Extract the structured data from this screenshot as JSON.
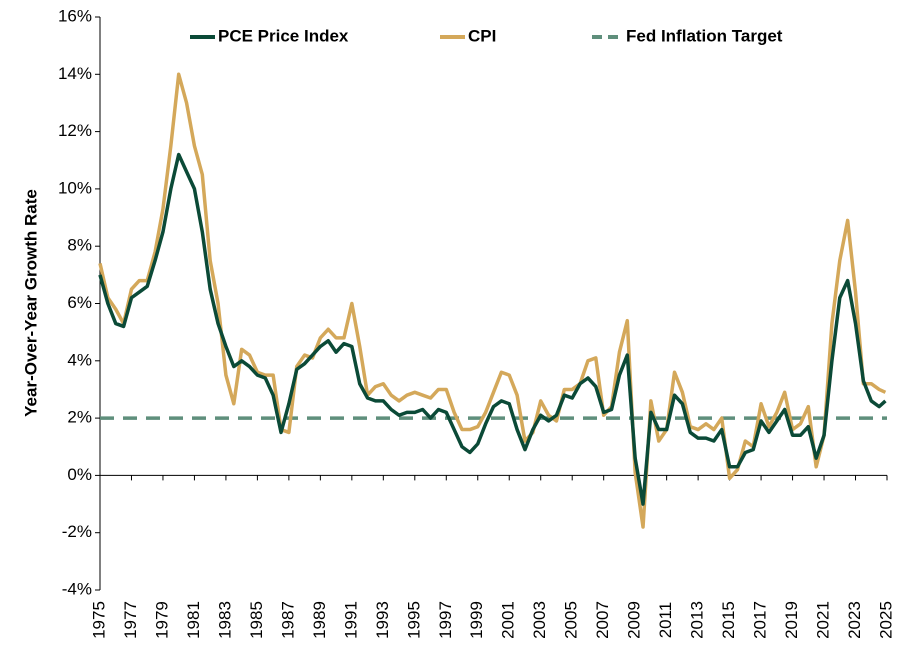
{
  "chart_data": {
    "type": "line",
    "y_label": "Year-Over-Year Growth Rate",
    "xlim": [
      1975,
      2025
    ],
    "xticks": [
      1975,
      1977,
      1979,
      1981,
      1983,
      1985,
      1987,
      1989,
      1991,
      1993,
      1995,
      1997,
      1999,
      2001,
      2003,
      2005,
      2007,
      2009,
      2011,
      2013,
      2015,
      2017,
      2019,
      2021,
      2023,
      2025
    ],
    "ylim": [
      -4,
      16
    ],
    "yticks": [
      {
        "value": -4,
        "label": "-4%"
      },
      {
        "value": -2,
        "label": "-2%"
      },
      {
        "value": 0,
        "label": "0%"
      },
      {
        "value": 2,
        "label": "2%"
      },
      {
        "value": 4,
        "label": "4%"
      },
      {
        "value": 6,
        "label": "6%"
      },
      {
        "value": 8,
        "label": "8%"
      },
      {
        "value": 10,
        "label": "10%"
      },
      {
        "value": 12,
        "label": "12%"
      },
      {
        "value": 14,
        "label": "14%"
      },
      {
        "value": 16,
        "label": "16%"
      }
    ],
    "x": [
      1975.0,
      1975.5,
      1976.0,
      1976.5,
      1977.0,
      1977.5,
      1978.0,
      1978.5,
      1979.0,
      1979.5,
      1980.0,
      1980.5,
      1981.0,
      1981.5,
      1982.0,
      1982.5,
      1983.0,
      1983.5,
      1984.0,
      1984.5,
      1985.0,
      1985.5,
      1986.0,
      1986.5,
      1987.0,
      1987.5,
      1988.0,
      1988.5,
      1989.0,
      1989.5,
      1990.0,
      1990.5,
      1991.0,
      1991.5,
      1992.0,
      1992.5,
      1993.0,
      1993.5,
      1994.0,
      1994.5,
      1995.0,
      1995.5,
      1996.0,
      1996.5,
      1997.0,
      1997.5,
      1998.0,
      1998.5,
      1999.0,
      1999.5,
      2000.0,
      2000.5,
      2001.0,
      2001.5,
      2002.0,
      2002.5,
      2003.0,
      2003.5,
      2004.0,
      2004.5,
      2005.0,
      2005.5,
      2006.0,
      2006.5,
      2007.0,
      2007.5,
      2008.0,
      2008.5,
      2009.0,
      2009.5,
      2010.0,
      2010.5,
      2011.0,
      2011.5,
      2012.0,
      2012.5,
      2013.0,
      2013.5,
      2014.0,
      2014.5,
      2015.0,
      2015.5,
      2016.0,
      2016.5,
      2017.0,
      2017.5,
      2018.0,
      2018.5,
      2019.0,
      2019.5,
      2020.0,
      2020.5,
      2021.0,
      2021.5,
      2022.0,
      2022.5,
      2023.0,
      2023.5,
      2024.0,
      2024.5,
      2024.9
    ],
    "series": [
      {
        "name": "PCE Price Index",
        "color": "#0b4a37",
        "values": [
          7.0,
          6.0,
          5.3,
          5.2,
          6.2,
          6.4,
          6.6,
          7.5,
          8.5,
          10.0,
          11.2,
          10.6,
          10.0,
          8.5,
          6.5,
          5.3,
          4.5,
          3.8,
          4.0,
          3.8,
          3.5,
          3.4,
          2.8,
          1.5,
          2.5,
          3.7,
          3.9,
          4.2,
          4.5,
          4.7,
          4.3,
          4.6,
          4.5,
          3.2,
          2.7,
          2.6,
          2.6,
          2.3,
          2.1,
          2.2,
          2.2,
          2.3,
          2.0,
          2.3,
          2.2,
          1.6,
          1.0,
          0.8,
          1.1,
          1.8,
          2.4,
          2.6,
          2.5,
          1.6,
          0.9,
          1.6,
          2.1,
          1.9,
          2.1,
          2.8,
          2.7,
          3.2,
          3.4,
          3.1,
          2.2,
          2.3,
          3.5,
          4.2,
          0.6,
          -1.0,
          2.2,
          1.6,
          1.6,
          2.8,
          2.5,
          1.5,
          1.3,
          1.3,
          1.2,
          1.6,
          0.3,
          0.3,
          0.8,
          0.9,
          1.9,
          1.5,
          1.9,
          2.3,
          1.4,
          1.4,
          1.7,
          0.6,
          1.4,
          4.0,
          6.2,
          6.8,
          5.3,
          3.3,
          2.6,
          2.4,
          2.6
        ]
      },
      {
        "name": "CPI",
        "color": "#d4a85a",
        "values": [
          7.4,
          6.2,
          5.8,
          5.3,
          6.5,
          6.8,
          6.8,
          7.8,
          9.3,
          11.5,
          14.0,
          13.0,
          11.5,
          10.5,
          7.5,
          6.0,
          3.5,
          2.5,
          4.4,
          4.2,
          3.6,
          3.5,
          3.5,
          1.6,
          1.5,
          3.8,
          4.2,
          4.1,
          4.8,
          5.1,
          4.8,
          4.8,
          6.0,
          4.5,
          2.8,
          3.1,
          3.2,
          2.8,
          2.6,
          2.8,
          2.9,
          2.8,
          2.7,
          3.0,
          3.0,
          2.2,
          1.6,
          1.6,
          1.7,
          2.2,
          2.9,
          3.6,
          3.5,
          2.8,
          1.2,
          1.5,
          2.6,
          2.1,
          1.9,
          3.0,
          3.0,
          3.2,
          4.0,
          4.1,
          2.1,
          2.4,
          4.3,
          5.4,
          0.1,
          -1.8,
          2.6,
          1.2,
          1.6,
          3.6,
          2.9,
          1.7,
          1.6,
          1.8,
          1.6,
          2.0,
          -0.1,
          0.2,
          1.2,
          1.0,
          2.5,
          1.7,
          2.2,
          2.9,
          1.6,
          1.8,
          2.4,
          0.3,
          1.4,
          5.3,
          7.5,
          8.9,
          6.4,
          3.2,
          3.2,
          3.0,
          2.9
        ]
      }
    ],
    "reference_lines": [
      {
        "name": "Fed Inflation Target",
        "value": 2,
        "color": "#5f8f7c",
        "dashed": true
      }
    ]
  }
}
